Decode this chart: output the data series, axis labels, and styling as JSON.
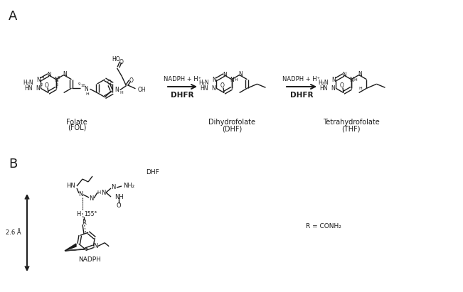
{
  "panel_a_label": "A",
  "panel_b_label": "B",
  "bg_color": "#ffffff",
  "line_color": "#1a1a1a",
  "text_color": "#1a1a1a",
  "arrow1_top": "NADPH + H⁺",
  "arrow1_bot": "DHFR",
  "arrow2_top": "NADPH + H⁺",
  "arrow2_bot": "DHFR",
  "folate_name": "Folate",
  "folate_abbr": "(FOL)",
  "dhf_name": "Dihydrofolate",
  "dhf_abbr": "(DHF)",
  "thf_name": "Tetrahydrofolate",
  "thf_abbr": "(THF)",
  "r_eq": "R = CONH₂",
  "dhf_b": "DHF",
  "nadph_b": "NADPH",
  "dist_label": "2.6 Å",
  "ang_label": "155°"
}
